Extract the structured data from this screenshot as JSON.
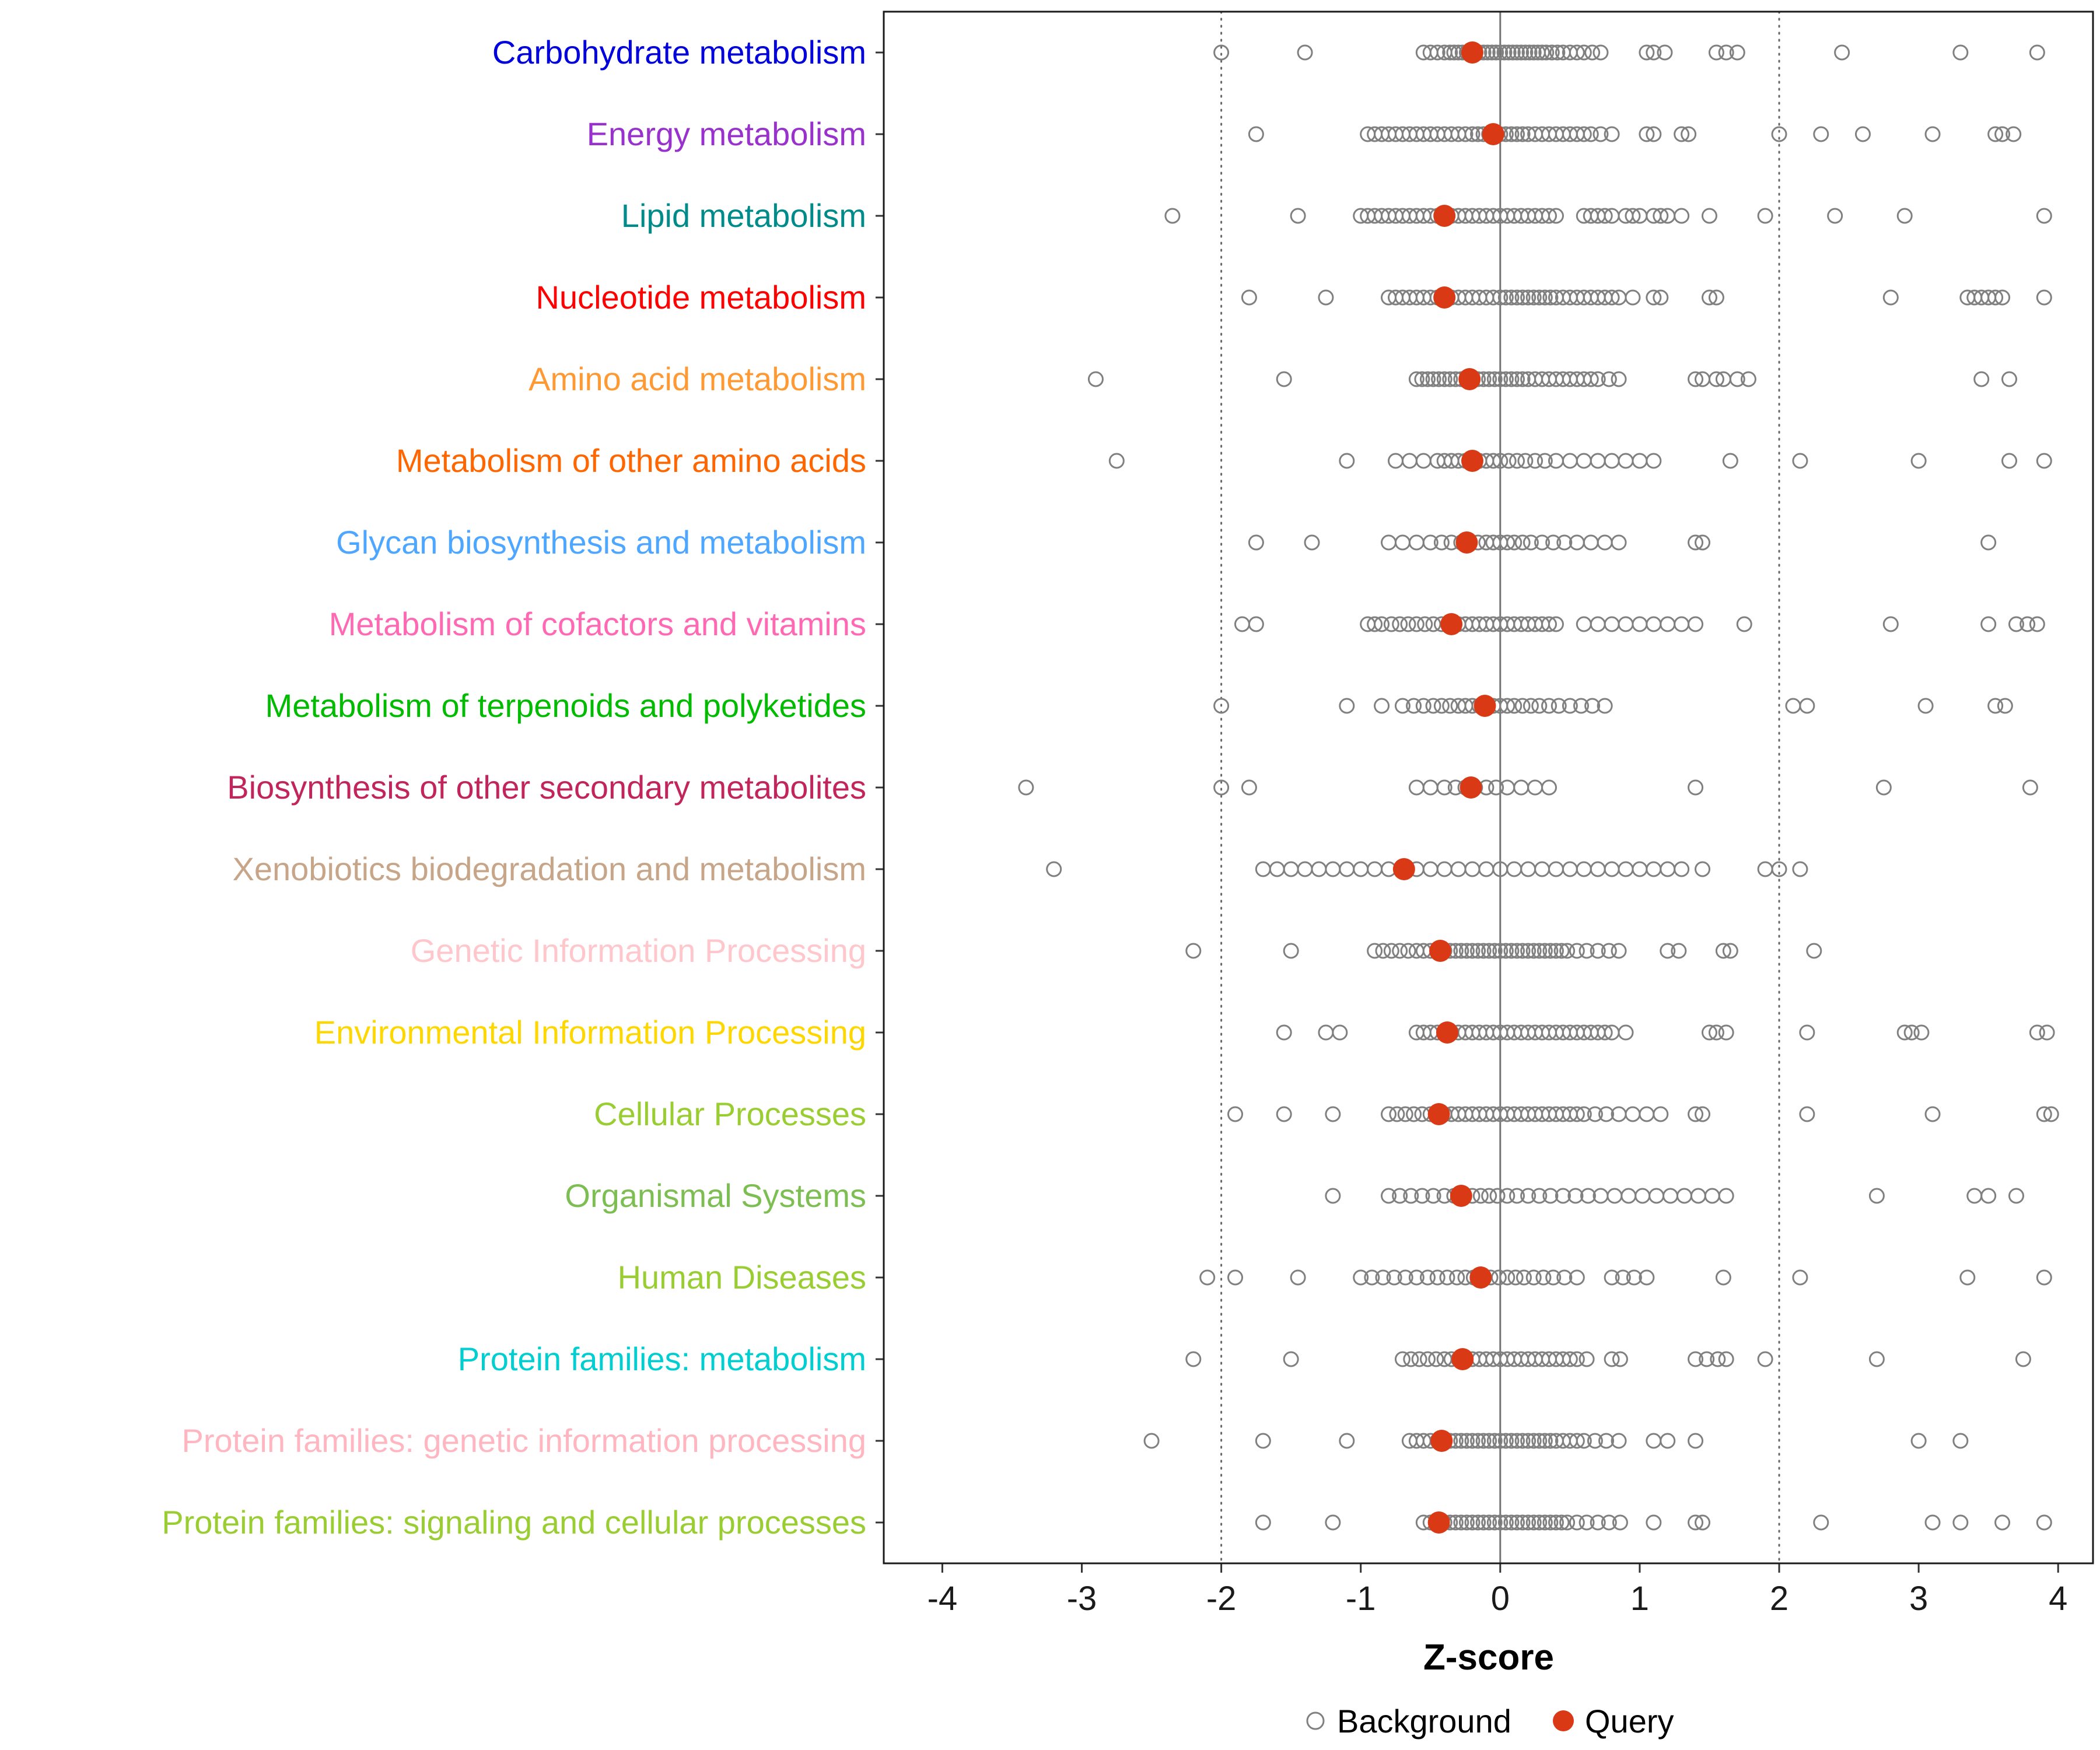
{
  "chart_data": {
    "type": "scatter",
    "subtype": "horizontal-strip-plot",
    "title": "",
    "xlabel": "Z-score",
    "ylabel": "",
    "xlim": [
      -4.42,
      4.25
    ],
    "xticks": [
      -4,
      -3,
      -2,
      -1,
      0,
      1,
      2,
      3,
      4
    ],
    "reference_lines": {
      "solid": [
        0
      ],
      "dotted": [
        -2,
        2
      ]
    },
    "grid": false,
    "background_color": "#808080",
    "query_color": "#D93A15",
    "legend_position": "bottom",
    "legend": [
      {
        "label": "Background",
        "marker": "open-circle",
        "color": "#808080"
      },
      {
        "label": "Query",
        "marker": "filled-circle",
        "color": "#D93A15"
      }
    ],
    "categories": [
      {
        "label": "Carbohydrate metabolism",
        "color": "#0000DD",
        "query": -0.2,
        "background": [
          -2.0,
          -1.4,
          -0.55,
          -0.5,
          -0.45,
          -0.4,
          -0.36,
          -0.33,
          -0.3,
          -0.27,
          -0.24,
          -0.21,
          -0.18,
          -0.15,
          -0.12,
          -0.09,
          -0.06,
          -0.03,
          0.0,
          0.03,
          0.06,
          0.09,
          0.12,
          0.15,
          0.18,
          0.21,
          0.24,
          0.27,
          0.3,
          0.33,
          0.37,
          0.41,
          0.45,
          0.5,
          0.55,
          0.6,
          0.66,
          0.72,
          1.05,
          1.1,
          1.18,
          1.55,
          1.62,
          1.7,
          2.45,
          3.3,
          3.85
        ]
      },
      {
        "label": "Energy metabolism",
        "color": "#9932CC",
        "query": -0.05,
        "background": [
          -1.75,
          -0.95,
          -0.9,
          -0.85,
          -0.8,
          -0.75,
          -0.7,
          -0.65,
          -0.6,
          -0.55,
          -0.5,
          -0.45,
          -0.4,
          -0.35,
          -0.3,
          -0.25,
          -0.2,
          -0.16,
          -0.12,
          -0.08,
          -0.04,
          0.0,
          0.04,
          0.08,
          0.12,
          0.16,
          0.2,
          0.25,
          0.3,
          0.35,
          0.4,
          0.45,
          0.5,
          0.55,
          0.6,
          0.65,
          0.72,
          0.8,
          1.05,
          1.1,
          1.3,
          1.35,
          2.0,
          2.3,
          2.6,
          3.1,
          3.55,
          3.6,
          3.68
        ]
      },
      {
        "label": "Lipid metabolism",
        "color": "#008B8B",
        "query": -0.4,
        "background": [
          -2.35,
          -1.45,
          -1.0,
          -0.95,
          -0.9,
          -0.85,
          -0.8,
          -0.75,
          -0.7,
          -0.65,
          -0.6,
          -0.55,
          -0.5,
          -0.45,
          -0.4,
          -0.35,
          -0.3,
          -0.25,
          -0.2,
          -0.15,
          -0.1,
          -0.05,
          0.0,
          0.05,
          0.1,
          0.15,
          0.2,
          0.25,
          0.3,
          0.35,
          0.4,
          0.6,
          0.65,
          0.7,
          0.75,
          0.8,
          0.9,
          0.95,
          1.0,
          1.1,
          1.15,
          1.2,
          1.3,
          1.5,
          1.9,
          2.4,
          2.9,
          3.9
        ]
      },
      {
        "label": "Nucleotide metabolism",
        "color": "#FF0000",
        "query": -0.4,
        "background": [
          -1.8,
          -1.25,
          -0.8,
          -0.75,
          -0.7,
          -0.65,
          -0.6,
          -0.55,
          -0.5,
          -0.45,
          -0.4,
          -0.35,
          -0.3,
          -0.25,
          -0.2,
          -0.15,
          -0.1,
          -0.05,
          0.0,
          0.04,
          0.08,
          0.12,
          0.16,
          0.2,
          0.24,
          0.28,
          0.32,
          0.36,
          0.4,
          0.45,
          0.5,
          0.55,
          0.6,
          0.65,
          0.7,
          0.75,
          0.8,
          0.85,
          0.95,
          1.1,
          1.15,
          1.5,
          1.55,
          2.8,
          3.35,
          3.4,
          3.45,
          3.5,
          3.55,
          3.6,
          3.9
        ]
      },
      {
        "label": "Amino acid metabolism",
        "color": "#FF9933",
        "query": -0.22,
        "background": [
          -2.9,
          -1.55,
          -0.6,
          -0.56,
          -0.52,
          -0.48,
          -0.44,
          -0.4,
          -0.36,
          -0.32,
          -0.28,
          -0.24,
          -0.2,
          -0.16,
          -0.12,
          -0.08,
          -0.04,
          0.0,
          0.04,
          0.08,
          0.12,
          0.16,
          0.2,
          0.25,
          0.3,
          0.35,
          0.4,
          0.45,
          0.5,
          0.55,
          0.6,
          0.65,
          0.7,
          0.78,
          0.85,
          1.4,
          1.45,
          1.55,
          1.6,
          1.7,
          1.78,
          3.45,
          3.65
        ]
      },
      {
        "label": "Metabolism of other amino acids",
        "color": "#FF6600",
        "query": -0.2,
        "background": [
          -2.75,
          -1.1,
          -0.75,
          -0.65,
          -0.55,
          -0.45,
          -0.4,
          -0.35,
          -0.3,
          -0.25,
          -0.2,
          -0.15,
          -0.1,
          -0.05,
          0.0,
          0.06,
          0.12,
          0.18,
          0.25,
          0.32,
          0.4,
          0.5,
          0.6,
          0.7,
          0.8,
          0.9,
          1.0,
          1.1,
          1.65,
          2.15,
          3.0,
          3.65,
          3.9
        ]
      },
      {
        "label": "Glycan biosynthesis and metabolism",
        "color": "#4DA6FF",
        "query": -0.24,
        "background": [
          -1.75,
          -1.35,
          -0.8,
          -0.7,
          -0.6,
          -0.5,
          -0.42,
          -0.35,
          -0.28,
          -0.22,
          -0.16,
          -0.1,
          -0.05,
          0.0,
          0.05,
          0.1,
          0.16,
          0.22,
          0.3,
          0.38,
          0.46,
          0.55,
          0.65,
          0.75,
          0.85,
          1.4,
          1.45,
          3.5
        ]
      },
      {
        "label": "Metabolism of cofactors and vitamins",
        "color": "#FF69B4",
        "query": -0.35,
        "background": [
          -1.85,
          -1.75,
          -0.95,
          -0.9,
          -0.85,
          -0.78,
          -0.72,
          -0.66,
          -0.6,
          -0.54,
          -0.48,
          -0.42,
          -0.36,
          -0.3,
          -0.25,
          -0.2,
          -0.15,
          -0.1,
          -0.05,
          0.0,
          0.05,
          0.1,
          0.15,
          0.2,
          0.25,
          0.3,
          0.35,
          0.4,
          0.6,
          0.7,
          0.8,
          0.9,
          1.0,
          1.1,
          1.2,
          1.3,
          1.4,
          1.75,
          2.8,
          3.5,
          3.7,
          3.78,
          3.85
        ]
      },
      {
        "label": "Metabolism of terpenoids and polyketides",
        "color": "#00BB00",
        "query": -0.11,
        "background": [
          -2.0,
          -1.1,
          -0.85,
          -0.7,
          -0.62,
          -0.55,
          -0.48,
          -0.42,
          -0.36,
          -0.3,
          -0.25,
          -0.2,
          -0.15,
          -0.1,
          -0.05,
          0.0,
          0.05,
          0.1,
          0.16,
          0.22,
          0.28,
          0.35,
          0.42,
          0.5,
          0.58,
          0.66,
          0.75,
          2.1,
          2.2,
          3.05,
          3.55,
          3.62
        ]
      },
      {
        "label": "Biosynthesis of other secondary metabolites",
        "color": "#C2255C",
        "query": -0.21,
        "background": [
          -3.4,
          -2.0,
          -1.8,
          -0.6,
          -0.5,
          -0.4,
          -0.32,
          -0.25,
          -0.18,
          -0.1,
          -0.03,
          0.05,
          0.15,
          0.25,
          0.35,
          1.4,
          2.75,
          3.8
        ]
      },
      {
        "label": "Xenobiotics biodegradation and metabolism",
        "color": "#C7A589",
        "query": -0.69,
        "background": [
          -3.2,
          -1.7,
          -1.6,
          -1.5,
          -1.4,
          -1.3,
          -1.2,
          -1.1,
          -1.0,
          -0.9,
          -0.8,
          -0.7,
          -0.6,
          -0.5,
          -0.4,
          -0.3,
          -0.2,
          -0.1,
          0.0,
          0.1,
          0.2,
          0.3,
          0.4,
          0.5,
          0.6,
          0.7,
          0.8,
          0.9,
          1.0,
          1.1,
          1.2,
          1.3,
          1.45,
          1.9,
          2.0,
          2.15
        ]
      },
      {
        "label": "Genetic Information Processing",
        "color": "#FFC6CC",
        "query": -0.43,
        "background": [
          -2.2,
          -1.5,
          -0.9,
          -0.84,
          -0.78,
          -0.72,
          -0.66,
          -0.6,
          -0.55,
          -0.5,
          -0.45,
          -0.4,
          -0.36,
          -0.32,
          -0.28,
          -0.24,
          -0.2,
          -0.16,
          -0.12,
          -0.08,
          -0.04,
          0.0,
          0.04,
          0.08,
          0.12,
          0.16,
          0.2,
          0.24,
          0.28,
          0.32,
          0.36,
          0.4,
          0.44,
          0.48,
          0.55,
          0.62,
          0.7,
          0.78,
          0.85,
          1.2,
          1.28,
          1.6,
          1.65,
          2.25
        ]
      },
      {
        "label": "Environmental Information Processing",
        "color": "#FFD700",
        "query": -0.38,
        "background": [
          -1.55,
          -1.25,
          -1.15,
          -0.6,
          -0.55,
          -0.5,
          -0.45,
          -0.4,
          -0.35,
          -0.3,
          -0.25,
          -0.2,
          -0.15,
          -0.1,
          -0.05,
          0.0,
          0.05,
          0.1,
          0.15,
          0.2,
          0.25,
          0.3,
          0.35,
          0.4,
          0.45,
          0.5,
          0.55,
          0.6,
          0.65,
          0.7,
          0.75,
          0.8,
          0.9,
          1.5,
          1.55,
          1.62,
          2.2,
          2.9,
          2.95,
          3.02,
          3.85,
          3.92
        ]
      },
      {
        "label": "Cellular Processes",
        "color": "#9ACD32",
        "query": -0.44,
        "background": [
          -1.9,
          -1.55,
          -1.2,
          -0.8,
          -0.74,
          -0.68,
          -0.62,
          -0.56,
          -0.5,
          -0.45,
          -0.4,
          -0.35,
          -0.3,
          -0.25,
          -0.2,
          -0.15,
          -0.1,
          -0.05,
          0.0,
          0.05,
          0.1,
          0.15,
          0.2,
          0.25,
          0.3,
          0.35,
          0.4,
          0.45,
          0.5,
          0.55,
          0.6,
          0.68,
          0.76,
          0.85,
          0.95,
          1.05,
          1.15,
          1.4,
          1.45,
          2.2,
          3.1,
          3.9,
          3.95
        ]
      },
      {
        "label": "Organismal Systems",
        "color": "#7DBE53",
        "query": -0.28,
        "background": [
          -1.2,
          -0.8,
          -0.72,
          -0.64,
          -0.56,
          -0.48,
          -0.4,
          -0.33,
          -0.26,
          -0.2,
          -0.14,
          -0.08,
          -0.02,
          0.05,
          0.12,
          0.2,
          0.28,
          0.36,
          0.45,
          0.54,
          0.63,
          0.72,
          0.82,
          0.92,
          1.02,
          1.12,
          1.22,
          1.32,
          1.42,
          1.52,
          1.62,
          2.7,
          3.4,
          3.5,
          3.7
        ]
      },
      {
        "label": "Human Diseases",
        "color": "#9ACD32",
        "query": -0.14,
        "background": [
          -2.1,
          -1.9,
          -1.45,
          -1.0,
          -0.92,
          -0.84,
          -0.76,
          -0.68,
          -0.6,
          -0.52,
          -0.45,
          -0.38,
          -0.31,
          -0.25,
          -0.19,
          -0.13,
          -0.07,
          -0.01,
          0.05,
          0.11,
          0.17,
          0.24,
          0.31,
          0.38,
          0.46,
          0.55,
          0.8,
          0.88,
          0.96,
          1.05,
          1.6,
          2.15,
          3.35,
          3.9
        ]
      },
      {
        "label": "Protein families: metabolism",
        "color": "#00CED1",
        "query": -0.27,
        "background": [
          -2.2,
          -1.5,
          -0.7,
          -0.64,
          -0.58,
          -0.52,
          -0.46,
          -0.4,
          -0.35,
          -0.3,
          -0.25,
          -0.2,
          -0.15,
          -0.1,
          -0.05,
          0.0,
          0.05,
          0.1,
          0.15,
          0.2,
          0.25,
          0.3,
          0.35,
          0.4,
          0.45,
          0.5,
          0.55,
          0.62,
          0.8,
          0.86,
          1.4,
          1.48,
          1.56,
          1.62,
          1.9,
          2.7,
          3.75
        ]
      },
      {
        "label": "Protein families: genetic information processing",
        "color": "#FFB6C1",
        "query": -0.42,
        "background": [
          -2.5,
          -1.7,
          -1.1,
          -0.65,
          -0.6,
          -0.55,
          -0.5,
          -0.45,
          -0.4,
          -0.36,
          -0.32,
          -0.28,
          -0.24,
          -0.2,
          -0.16,
          -0.12,
          -0.08,
          -0.04,
          0.0,
          0.04,
          0.08,
          0.12,
          0.16,
          0.2,
          0.24,
          0.28,
          0.32,
          0.36,
          0.4,
          0.45,
          0.5,
          0.55,
          0.6,
          0.68,
          0.76,
          0.85,
          1.1,
          1.2,
          1.4,
          3.0,
          3.3
        ]
      },
      {
        "label": "Protein families: signaling and cellular processes",
        "color": "#9ACD32",
        "query": -0.44,
        "background": [
          -1.7,
          -1.2,
          -0.55,
          -0.5,
          -0.45,
          -0.4,
          -0.36,
          -0.32,
          -0.28,
          -0.24,
          -0.2,
          -0.16,
          -0.12,
          -0.08,
          -0.04,
          0.0,
          0.04,
          0.08,
          0.12,
          0.16,
          0.2,
          0.24,
          0.28,
          0.32,
          0.36,
          0.4,
          0.44,
          0.48,
          0.55,
          0.62,
          0.7,
          0.78,
          0.86,
          1.1,
          1.4,
          1.45,
          2.3,
          3.1,
          3.3,
          3.6,
          3.9
        ]
      }
    ]
  }
}
